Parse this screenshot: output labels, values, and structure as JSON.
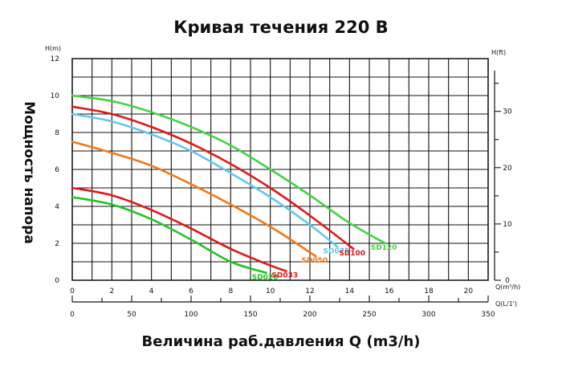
{
  "chart_data": {
    "type": "line",
    "title": "Кривая течения 220 В",
    "xlabel": "Величина раб.давления Q (m3/h)",
    "ylabel": "Мощность напора",
    "x_unit": "Q(m³/h)",
    "x2_unit": "Q(L/1')",
    "y_unit": "H(m)",
    "y2_unit": "H(ft)",
    "xlim": [
      0,
      21
    ],
    "ylim": [
      0,
      12
    ],
    "x_ticks": [
      0,
      2,
      4,
      6,
      8,
      10,
      12,
      14,
      16,
      18,
      20
    ],
    "y_ticks": [
      0,
      2,
      4,
      6,
      8,
      10,
      12
    ],
    "x2_ticks": [
      0,
      50,
      100,
      150,
      200,
      250,
      300,
      350
    ],
    "y2_ticks": [
      0,
      10,
      20,
      30
    ],
    "grid": true,
    "series": [
      {
        "name": "SD020",
        "color": "#22c422",
        "x": [
          0,
          2,
          4,
          6,
          8,
          9.8
        ],
        "y": [
          4.5,
          4.1,
          3.3,
          2.2,
          1.0,
          0.4
        ]
      },
      {
        "name": "SD033",
        "color": "#e01818",
        "x": [
          0,
          2,
          4,
          6,
          8,
          10,
          10.8
        ],
        "y": [
          5.0,
          4.6,
          3.8,
          2.8,
          1.7,
          0.8,
          0.5
        ]
      },
      {
        "name": "SD050",
        "color": "#f07818",
        "x": [
          0,
          2,
          4,
          6,
          8,
          10,
          12.3
        ],
        "y": [
          7.5,
          6.9,
          6.2,
          5.2,
          4.1,
          2.9,
          1.3
        ]
      },
      {
        "name": "SD075",
        "color": "#60c8f0",
        "x": [
          0,
          2,
          4,
          6,
          8,
          10,
          12,
          13.4
        ],
        "y": [
          9.0,
          8.6,
          7.9,
          7.0,
          5.8,
          4.5,
          3.0,
          1.8
        ]
      },
      {
        "name": "SD100",
        "color": "#e01818",
        "x": [
          0,
          2,
          4,
          6,
          8,
          10,
          12,
          14.2
        ],
        "y": [
          9.4,
          9.0,
          8.3,
          7.4,
          6.3,
          5.0,
          3.5,
          1.7
        ]
      },
      {
        "name": "SD120",
        "color": "#3fd43f",
        "x": [
          0,
          2,
          4,
          6,
          8,
          10,
          12,
          14,
          15.8
        ],
        "y": [
          10.0,
          9.7,
          9.1,
          8.3,
          7.3,
          6.0,
          4.6,
          3.1,
          2.0
        ]
      }
    ]
  }
}
